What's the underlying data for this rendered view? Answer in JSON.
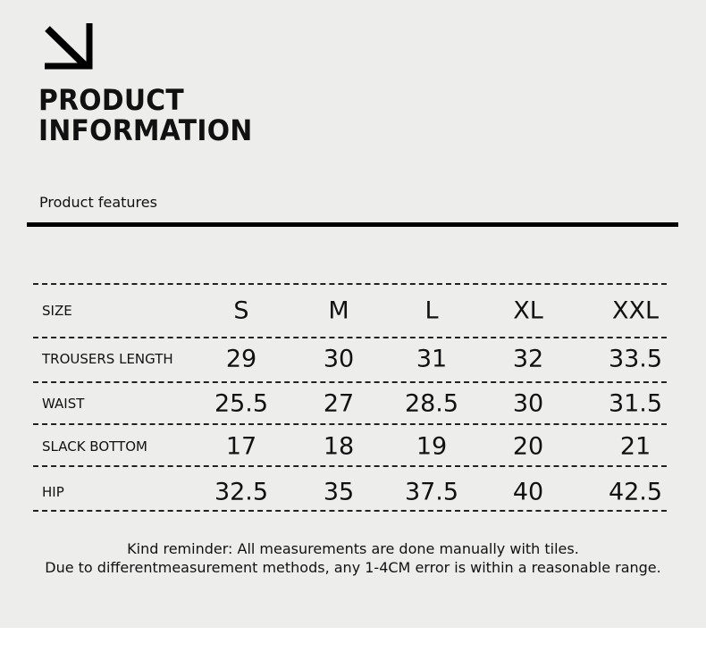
{
  "header": {
    "icon": "arrow-down-right-icon",
    "title_line1": "PRODUCT",
    "title_line2": "INFORMATION",
    "subtitle": "Product features"
  },
  "table": {
    "header": {
      "label": "SIZE",
      "sizes": [
        "S",
        "M",
        "L",
        "XL",
        "XXL"
      ]
    },
    "rows": [
      {
        "label": "TROUSERS LENGTH",
        "values": [
          "29",
          "30",
          "31",
          "32",
          "33.5"
        ]
      },
      {
        "label": "WAIST",
        "values": [
          "25.5",
          "27",
          "28.5",
          "30",
          "31.5"
        ]
      },
      {
        "label": "SLACK BOTTOM",
        "values": [
          "17",
          "18",
          "19",
          "20",
          "21"
        ]
      },
      {
        "label": "HIP",
        "values": [
          "32.5",
          "35",
          "37.5",
          "40",
          "42.5"
        ]
      }
    ]
  },
  "notes": {
    "line1": "Kind reminder: All measurements are done manually with tiles.",
    "line2": "Due to differentmeasurement methods, any 1-4CM error is within a reasonable range."
  },
  "colors": {
    "background": "#ededec",
    "text": "#111111"
  }
}
